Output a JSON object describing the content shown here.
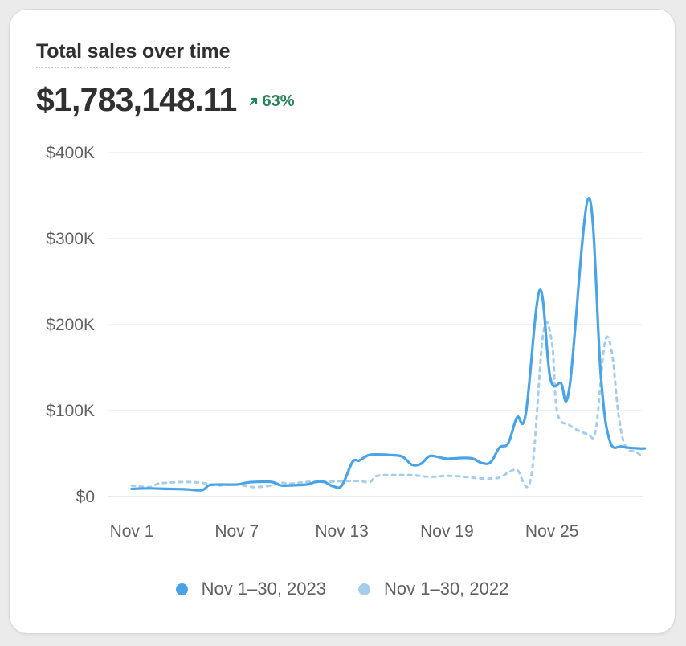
{
  "card": {
    "title": "Total sales over time",
    "total": "$1,783,148.11",
    "change": "63%",
    "change_icon": "arrow-up-right-icon",
    "change_color": "#29845a"
  },
  "colors": {
    "current": "#4aa3e6",
    "previous": "#a6cdec",
    "grid": "#e3e3e3",
    "axis_text": "#616161"
  },
  "chart_data": {
    "type": "line",
    "title": "Total sales over time",
    "xlabel": "",
    "ylabel": "",
    "x_ticks": [
      "Nov 1",
      "Nov 7",
      "Nov 13",
      "Nov 19",
      "Nov 25"
    ],
    "y_ticks": [
      "$0",
      "$100K",
      "$200K",
      "$300K",
      "$400K"
    ],
    "ylim": [
      0,
      400000
    ],
    "x_range": [
      1,
      30.3
    ],
    "grid": true,
    "legend_position": "bottom",
    "series": [
      {
        "name": "Nov 1–30, 2023",
        "style": "solid",
        "points": [
          [
            1,
            9000
          ],
          [
            2,
            9500
          ],
          [
            3,
            9000
          ],
          [
            4,
            8500
          ],
          [
            5,
            7500
          ],
          [
            5.4,
            13000
          ],
          [
            6,
            14000
          ],
          [
            7,
            14000
          ],
          [
            7.5,
            16000
          ],
          [
            8,
            17000
          ],
          [
            9,
            17000
          ],
          [
            9.5,
            13000
          ],
          [
            10,
            13000
          ],
          [
            11,
            14000
          ],
          [
            11.5,
            17000
          ],
          [
            12,
            17000
          ],
          [
            12.5,
            12000
          ],
          [
            13,
            13000
          ],
          [
            13.6,
            40000
          ],
          [
            14,
            42000
          ],
          [
            14.5,
            48000
          ],
          [
            15,
            49000
          ],
          [
            16,
            48000
          ],
          [
            16.5,
            46000
          ],
          [
            17,
            37000
          ],
          [
            17.5,
            38000
          ],
          [
            18,
            47000
          ],
          [
            18.5,
            46000
          ],
          [
            19,
            44000
          ],
          [
            20,
            45000
          ],
          [
            20.5,
            44000
          ],
          [
            21,
            39000
          ],
          [
            21.5,
            40000
          ],
          [
            22,
            57000
          ],
          [
            22.5,
            62000
          ],
          [
            23,
            92000
          ],
          [
            23.5,
            96000
          ],
          [
            24.3,
            240000
          ],
          [
            24.9,
            138000
          ],
          [
            25.5,
            132000
          ],
          [
            26,
            127000
          ],
          [
            27.1,
            347000
          ],
          [
            27.8,
            138000
          ],
          [
            28.3,
            65000
          ],
          [
            29,
            58000
          ],
          [
            30,
            56000
          ],
          [
            30.3,
            56000
          ]
        ]
      },
      {
        "name": "Nov 1–30, 2022",
        "style": "dashed",
        "points": [
          [
            1,
            13000
          ],
          [
            2,
            11000
          ],
          [
            2.5,
            15000
          ],
          [
            3,
            16000
          ],
          [
            4,
            17000
          ],
          [
            5,
            16000
          ],
          [
            6,
            13000
          ],
          [
            7,
            14000
          ],
          [
            8,
            11000
          ],
          [
            9,
            13000
          ],
          [
            9.5,
            16000
          ],
          [
            10,
            15000
          ],
          [
            11,
            17000
          ],
          [
            12,
            17000
          ],
          [
            13,
            18000
          ],
          [
            14,
            18000
          ],
          [
            14.6,
            17000
          ],
          [
            15,
            24000
          ],
          [
            16,
            25000
          ],
          [
            17,
            25000
          ],
          [
            18,
            23000
          ],
          [
            19,
            24000
          ],
          [
            20,
            23000
          ],
          [
            21,
            21000
          ],
          [
            22,
            22000
          ],
          [
            22.5,
            28000
          ],
          [
            23,
            31000
          ],
          [
            23.8,
            22000
          ],
          [
            24.5,
            190000
          ],
          [
            25,
            178000
          ],
          [
            25.3,
            98000
          ],
          [
            26,
            83000
          ],
          [
            27,
            73000
          ],
          [
            27.5,
            78000
          ],
          [
            28,
            177000
          ],
          [
            28.4,
            170000
          ],
          [
            28.8,
            95000
          ],
          [
            29.2,
            58000
          ],
          [
            29.8,
            52000
          ],
          [
            30.2,
            45000
          ]
        ]
      }
    ]
  }
}
